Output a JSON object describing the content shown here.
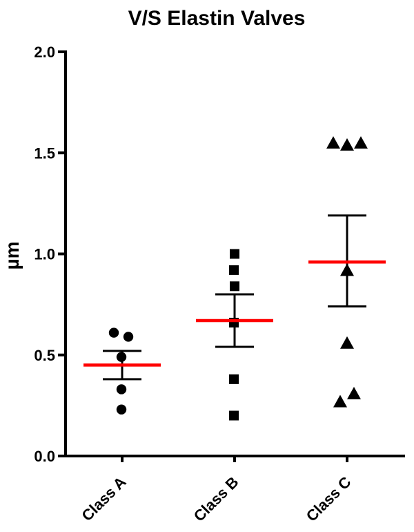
{
  "chart_data": {
    "type": "scatter",
    "title": "V/S Elastin Valves",
    "ylabel": "µm",
    "xlabel": "",
    "ylim": [
      0.0,
      2.0
    ],
    "yticks": [
      "0.0",
      "0.5",
      "1.0",
      "1.5",
      "2.0"
    ],
    "categories": [
      "Class A",
      "Class B",
      "Class C"
    ],
    "grid": false,
    "legend": "none",
    "marker_color": "#000000",
    "mean_line_color": "#FF0000",
    "axis_color": "#000000",
    "background_color": "#FFFFFF",
    "groups": [
      {
        "label": "Class A",
        "marker": "circle",
        "values": [
          0.61,
          0.59,
          0.49,
          0.33,
          0.23
        ],
        "point_dx": [
          -12,
          9,
          -1,
          -1,
          -1
        ],
        "mean": 0.45,
        "error_top": 0.52,
        "error_bottom": 0.38
      },
      {
        "label": "Class B",
        "marker": "square",
        "values": [
          1.0,
          0.92,
          0.84,
          0.66,
          0.38,
          0.2
        ],
        "point_dx": [
          0,
          -1,
          0,
          -1,
          -1,
          -1
        ],
        "mean": 0.67,
        "error_top": 0.8,
        "error_bottom": 0.54
      },
      {
        "label": "Class C",
        "marker": "triangle",
        "values": [
          1.55,
          1.54,
          1.55,
          0.92,
          0.56,
          0.31,
          0.27
        ],
        "point_dx": [
          -20,
          0,
          20,
          0,
          0,
          10,
          -10
        ],
        "mean": 0.96,
        "error_top": 1.19,
        "error_bottom": 0.74
      }
    ]
  }
}
